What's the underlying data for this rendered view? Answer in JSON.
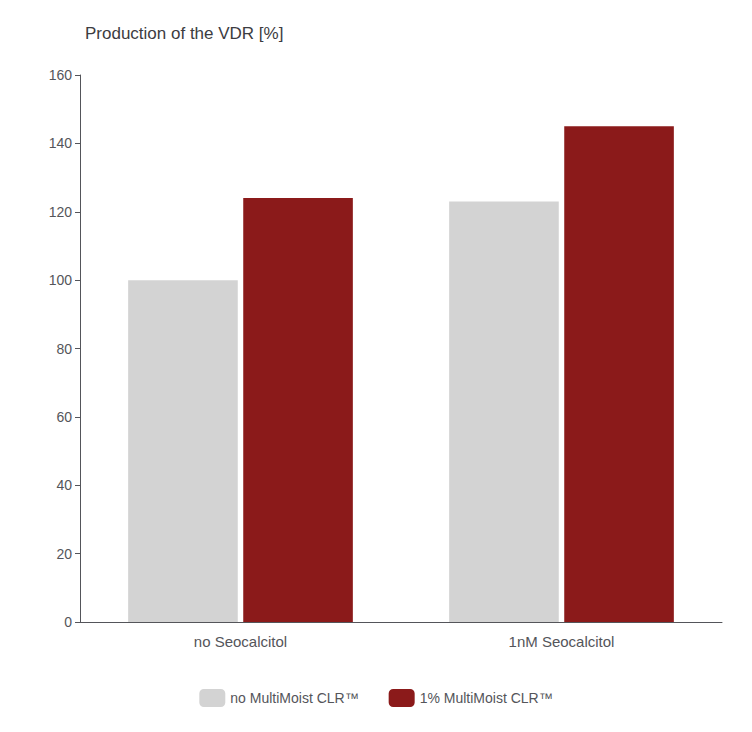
{
  "chart_data": {
    "type": "bar",
    "title": "Production of the VDR [%]",
    "categories": [
      "no Seocalcitol",
      "1nM Seocalcitol"
    ],
    "series": [
      {
        "name": "no MultiMoist CLR™",
        "color": "#d3d3d3",
        "values": [
          100,
          123
        ]
      },
      {
        "name": "1% MultiMoist CLR™",
        "color": "#8b1a1a",
        "values": [
          124,
          145
        ]
      }
    ],
    "ylim": [
      0,
      160
    ],
    "yticks": [
      0,
      20,
      40,
      60,
      80,
      100,
      120,
      140,
      160
    ],
    "grid": false,
    "legend": "bottom"
  }
}
